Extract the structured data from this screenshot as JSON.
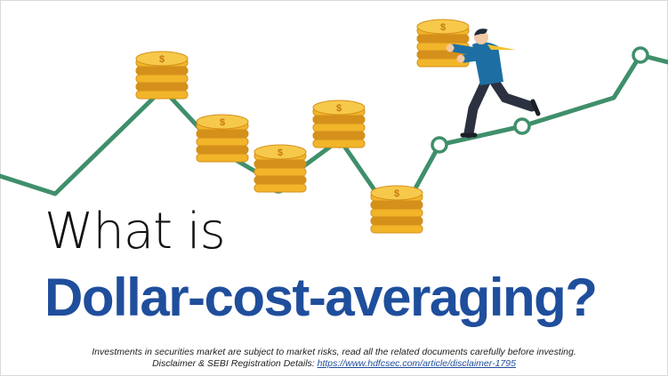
{
  "title": {
    "line1": "What is",
    "line2": "Dollar-cost-averaging?"
  },
  "disclaimer": {
    "line1": "Investments in securities market are subject to market risks, read all the related documents carefully before investing.",
    "line2_prefix": "Disclaimer & SEBI Registration Details: ",
    "link_text": "https://www.hdfcsec.com/article/disclaimer-1795"
  },
  "illustration": {
    "line_color": "#3f8f6b",
    "coin_color": "#f2b52a",
    "coin_edge": "#d4901a",
    "coin_symbol": "$",
    "person_suit": "#1d6fa3",
    "person_pants": "#2b3140",
    "tie_color": "#f2c230",
    "icons": [
      "growth-line-icon",
      "coin-stack-icon",
      "businessman-icon"
    ]
  }
}
